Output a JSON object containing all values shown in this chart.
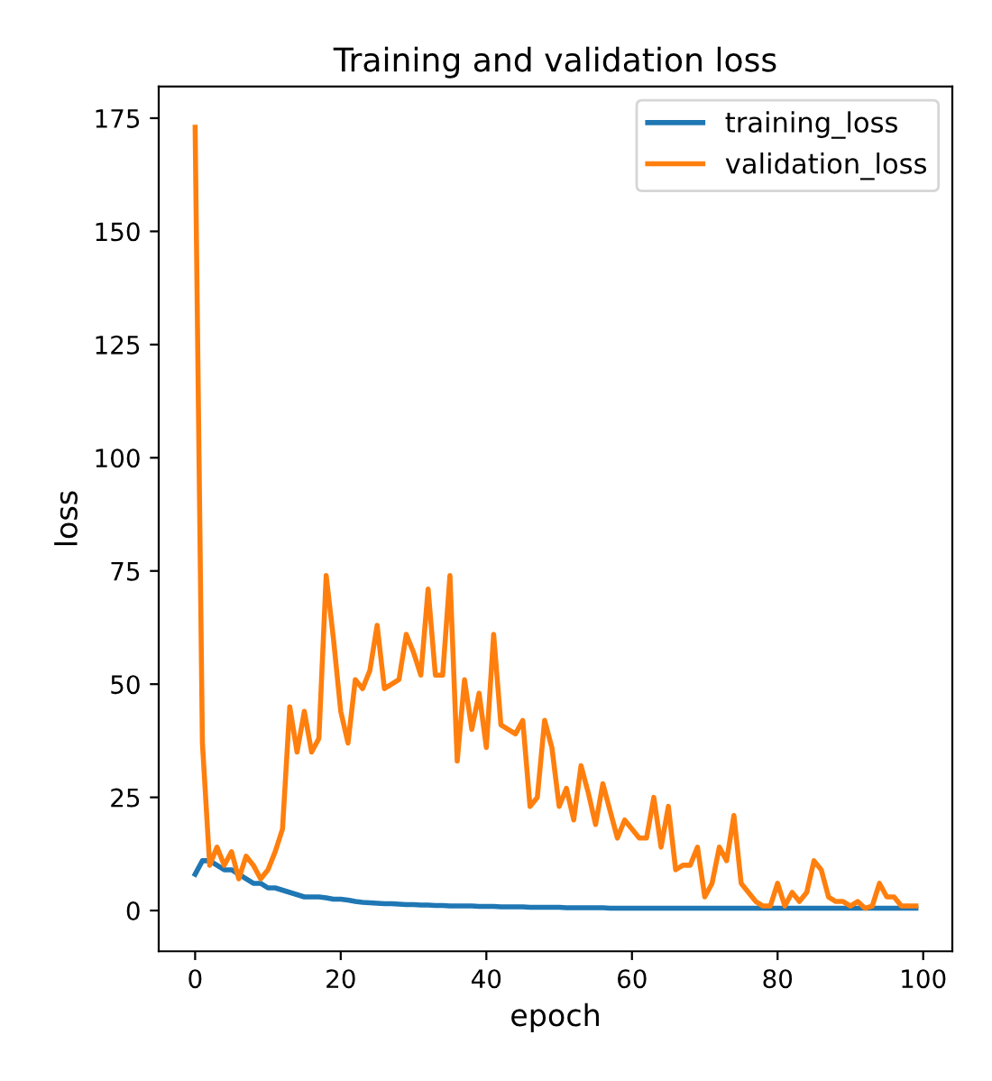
{
  "chart_data": {
    "type": "line",
    "title": "Training and validation loss",
    "xlabel": "epoch",
    "ylabel": "loss",
    "x": [
      0,
      1,
      2,
      3,
      4,
      5,
      6,
      7,
      8,
      9,
      10,
      11,
      12,
      13,
      14,
      15,
      16,
      17,
      18,
      19,
      20,
      21,
      22,
      23,
      24,
      25,
      26,
      27,
      28,
      29,
      30,
      31,
      32,
      33,
      34,
      35,
      36,
      37,
      38,
      39,
      40,
      41,
      42,
      43,
      44,
      45,
      46,
      47,
      48,
      49,
      50,
      51,
      52,
      53,
      54,
      55,
      56,
      57,
      58,
      59,
      60,
      61,
      62,
      63,
      64,
      65,
      66,
      67,
      68,
      69,
      70,
      71,
      72,
      73,
      74,
      75,
      76,
      77,
      78,
      79,
      80,
      81,
      82,
      83,
      84,
      85,
      86,
      87,
      88,
      89,
      90,
      91,
      92,
      93,
      94,
      95,
      96,
      97,
      98,
      99
    ],
    "series": [
      {
        "name": "training_loss",
        "color": "#1f77b4",
        "values": [
          8,
          11,
          11,
          10,
          9,
          9,
          8,
          7,
          6,
          6,
          5,
          5,
          4.5,
          4,
          3.5,
          3,
          3,
          3,
          2.8,
          2.5,
          2.5,
          2.3,
          2,
          1.8,
          1.7,
          1.6,
          1.5,
          1.5,
          1.4,
          1.3,
          1.3,
          1.2,
          1.2,
          1.1,
          1.1,
          1,
          1,
          1,
          1,
          0.9,
          0.9,
          0.9,
          0.8,
          0.8,
          0.8,
          0.8,
          0.7,
          0.7,
          0.7,
          0.7,
          0.7,
          0.6,
          0.6,
          0.6,
          0.6,
          0.6,
          0.6,
          0.5,
          0.5,
          0.5,
          0.5,
          0.5,
          0.5,
          0.5,
          0.5,
          0.5,
          0.5,
          0.5,
          0.5,
          0.5,
          0.5,
          0.5,
          0.5,
          0.5,
          0.5,
          0.5,
          0.5,
          0.5,
          0.5,
          0.5,
          0.5,
          0.5,
          0.5,
          0.5,
          0.5,
          0.5,
          0.5,
          0.5,
          0.5,
          0.5,
          0.5,
          0.5,
          0.5,
          0.5,
          0.5,
          0.5,
          0.5,
          0.5,
          0.5,
          0.5
        ]
      },
      {
        "name": "validation_loss",
        "color": "#ff7f0e",
        "values": [
          173,
          37,
          10,
          14,
          10,
          13,
          7,
          12,
          10,
          7,
          9,
          13,
          18,
          45,
          35,
          44,
          35,
          38,
          74,
          60,
          44,
          37,
          51,
          49,
          53,
          63,
          49,
          50,
          51,
          61,
          57,
          52,
          71,
          52,
          52,
          74,
          33,
          51,
          40,
          48,
          36,
          61,
          41,
          40,
          39,
          42,
          23,
          25,
          42,
          36,
          23,
          27,
          20,
          32,
          26,
          19,
          28,
          22,
          16,
          20,
          18,
          16,
          16,
          25,
          14,
          23,
          9,
          10,
          10,
          14,
          3,
          6,
          14,
          11,
          21,
          6,
          4,
          2,
          1,
          1,
          6,
          1,
          4,
          2,
          4,
          11,
          9,
          3,
          2,
          2,
          1,
          2,
          0.5,
          1,
          6,
          3,
          3,
          1,
          1,
          1
        ]
      }
    ],
    "xlim": [
      -5,
      104
    ],
    "xticks": [
      0,
      20,
      40,
      60,
      80,
      100
    ],
    "ylim": [
      -9,
      182
    ],
    "yticks": [
      0,
      25,
      50,
      75,
      100,
      125,
      150,
      175
    ],
    "legend": "top right",
    "grid": false
  }
}
